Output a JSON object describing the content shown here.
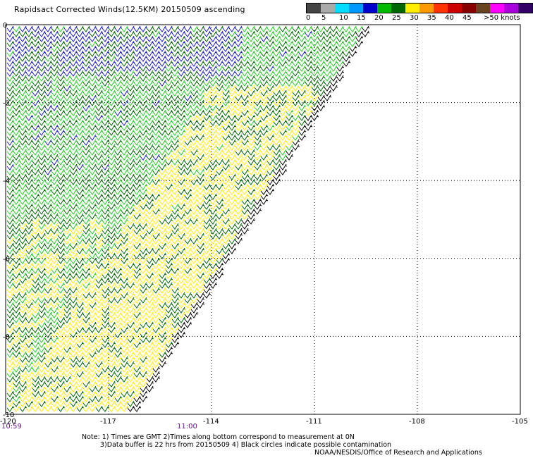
{
  "title": "Rapidsact Corrected Winds(12.5KM) 20150509 ascending",
  "legend": {
    "labels": [
      "0",
      "5",
      "10",
      "15",
      "20",
      "25",
      "30",
      "35",
      "40",
      "45",
      ">50"
    ],
    "unit": "knots",
    "colors": [
      "#444444",
      "#aaaaaa",
      "#00ddff",
      "#0099ff",
      "#0000cc",
      "#00bb00",
      "#006600",
      "#ffee00",
      "#ff9900",
      "#ff3300",
      "#cc0000",
      "#880000",
      "#664422",
      "#ff00ff",
      "#aa00dd",
      "#330066"
    ]
  },
  "map": {
    "lon_ticks": [
      "-120",
      "-117",
      "-114",
      "-111",
      "-108",
      "-105"
    ],
    "lat_ticks": [
      "0",
      "-2",
      "-4",
      "-6",
      "-8",
      "-10"
    ],
    "lon_range": [
      -120,
      -105
    ],
    "lat_range": [
      -10,
      0
    ],
    "grid": true,
    "gridline_style": "dotted"
  },
  "times": {
    "left": "10:59",
    "middle": "11:00"
  },
  "notes": {
    "line1": "Note: 1) Times are GMT 2)Times along bottom correspond to measurement at 0N",
    "line2": "3)Data buffer is 22 hrs from 20150509 4) Black circles indicate possible contamination",
    "line3": "NOAA/NESDIS/Office of Research and Applications"
  },
  "wind_colors": {
    "blue": "#1a1acc",
    "green": "#22cc22",
    "dark_green": "#006600",
    "yellow": "#ffee00",
    "black": "#000000"
  }
}
